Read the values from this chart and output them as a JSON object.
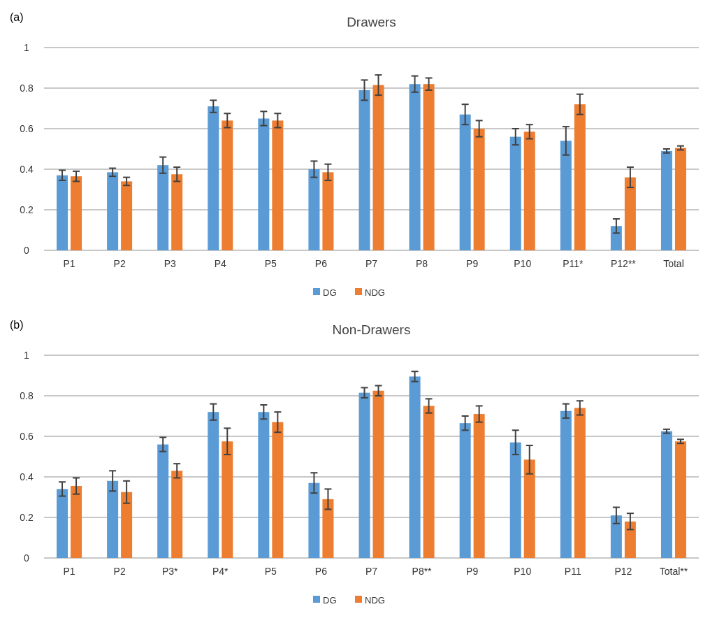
{
  "chart_data": [
    {
      "type": "bar",
      "title": "Drawers",
      "annotations": [
        "(a)"
      ],
      "categories": [
        "P1",
        "P2",
        "P3",
        "P4",
        "P5",
        "P6",
        "P7",
        "P8",
        "P9",
        "P10",
        "P11*",
        "P12**",
        "Total"
      ],
      "series": [
        {
          "name": "DG",
          "color": "#5b9bd5",
          "values": [
            0.37,
            0.385,
            0.42,
            0.71,
            0.65,
            0.4,
            0.79,
            0.82,
            0.67,
            0.56,
            0.54,
            0.12,
            0.49
          ],
          "errors": [
            0.025,
            0.02,
            0.04,
            0.03,
            0.035,
            0.04,
            0.05,
            0.04,
            0.05,
            0.04,
            0.07,
            0.035,
            0.01
          ]
        },
        {
          "name": "NDG",
          "color": "#ed7d31",
          "values": [
            0.365,
            0.34,
            0.375,
            0.64,
            0.64,
            0.385,
            0.815,
            0.82,
            0.6,
            0.585,
            0.72,
            0.36,
            0.505
          ],
          "errors": [
            0.025,
            0.02,
            0.035,
            0.035,
            0.035,
            0.04,
            0.05,
            0.03,
            0.04,
            0.035,
            0.05,
            0.05,
            0.01
          ]
        }
      ],
      "ylim": [
        0,
        1
      ],
      "yticks": [
        0,
        0.2,
        0.4,
        0.6,
        0.8,
        1
      ],
      "grid": "y",
      "legend": "bottom"
    },
    {
      "type": "bar",
      "title": "Non-Drawers",
      "annotations": [
        "(b)"
      ],
      "categories": [
        "P1",
        "P2",
        "P3*",
        "P4*",
        "P5",
        "P6",
        "P7",
        "P8**",
        "P9",
        "P10",
        "P11",
        "P12",
        "Total**"
      ],
      "series": [
        {
          "name": "DG",
          "color": "#5b9bd5",
          "values": [
            0.34,
            0.38,
            0.56,
            0.72,
            0.72,
            0.37,
            0.815,
            0.895,
            0.665,
            0.57,
            0.725,
            0.21,
            0.625
          ],
          "errors": [
            0.035,
            0.05,
            0.035,
            0.04,
            0.035,
            0.05,
            0.025,
            0.025,
            0.035,
            0.06,
            0.035,
            0.04,
            0.01
          ]
        },
        {
          "name": "NDG",
          "color": "#ed7d31",
          "values": [
            0.355,
            0.325,
            0.43,
            0.575,
            0.67,
            0.29,
            0.825,
            0.75,
            0.71,
            0.485,
            0.74,
            0.18,
            0.575
          ],
          "errors": [
            0.04,
            0.055,
            0.035,
            0.065,
            0.05,
            0.05,
            0.025,
            0.035,
            0.04,
            0.07,
            0.035,
            0.04,
            0.01
          ]
        }
      ],
      "ylim": [
        0,
        1
      ],
      "yticks": [
        0,
        0.2,
        0.4,
        0.6,
        0.8,
        1
      ],
      "grid": "y",
      "legend": "bottom"
    }
  ]
}
